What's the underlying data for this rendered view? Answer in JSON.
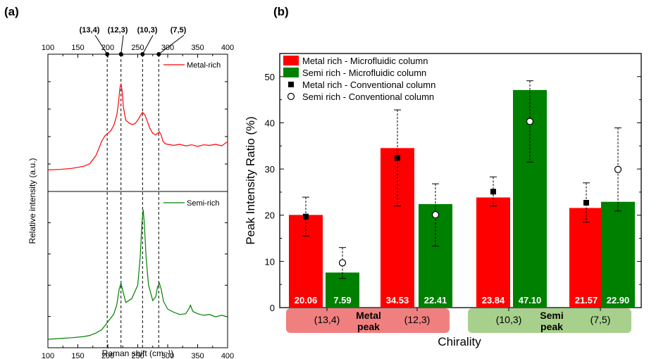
{
  "panel_a": {
    "label": "(a)",
    "chart_data": {
      "type": "line",
      "xlabel": "Raman shift (cm⁻¹)",
      "ylabel": "Relative intensity (a.u.)",
      "xlim": [
        100,
        400
      ],
      "xticks": [
        "100",
        "150",
        "200",
        "250",
        "300",
        "350",
        "400"
      ],
      "top_xticks": [
        "100",
        "150",
        "200",
        "250",
        "300",
        "350",
        "400"
      ],
      "markers": [
        {
          "label": "(13,4)",
          "x": 199
        },
        {
          "label": "(12,3)",
          "x": 222
        },
        {
          "label": "(10,3)",
          "x": 258
        },
        {
          "label": "(7,5)",
          "x": 285
        }
      ],
      "series": [
        {
          "name": "Metal-rich",
          "color": "#ff0000",
          "x": [
            100,
            120,
            140,
            160,
            170,
            180,
            185,
            190,
            195,
            200,
            205,
            210,
            215,
            218,
            220,
            222,
            224,
            226,
            230,
            235,
            240,
            245,
            250,
            255,
            258,
            262,
            266,
            270,
            275,
            280,
            283,
            286,
            289,
            292,
            296,
            300,
            310,
            320,
            330,
            340,
            350,
            360,
            370,
            380,
            390,
            400
          ],
          "y": [
            0.25,
            0.26,
            0.28,
            0.32,
            0.37,
            0.52,
            0.66,
            0.8,
            0.9,
            0.95,
            1.0,
            1.1,
            1.3,
            1.55,
            1.8,
            1.9,
            1.75,
            1.45,
            1.2,
            1.15,
            1.12,
            1.13,
            1.2,
            1.3,
            1.35,
            1.3,
            1.18,
            1.05,
            0.95,
            0.92,
            0.95,
            0.98,
            0.92,
            0.8,
            0.75,
            0.74,
            0.72,
            0.74,
            0.71,
            0.73,
            0.7,
            0.73,
            0.72,
            0.74,
            0.71,
            0.79
          ]
        },
        {
          "name": "Semi-rich",
          "color": "#008000",
          "x": [
            100,
            120,
            140,
            160,
            170,
            180,
            190,
            200,
            205,
            210,
            215,
            219,
            222,
            225,
            230,
            240,
            250,
            254,
            257,
            259,
            261,
            264,
            268,
            275,
            280,
            283,
            286,
            289,
            293,
            300,
            310,
            320,
            330,
            335,
            338,
            342,
            350,
            360,
            370,
            380,
            390,
            400
          ],
          "y": [
            0.0,
            0.02,
            0.04,
            0.07,
            0.1,
            0.16,
            0.25,
            0.45,
            0.55,
            0.65,
            0.9,
            1.3,
            1.45,
            1.25,
            0.95,
            1.05,
            1.4,
            2.1,
            3.0,
            3.35,
            3.0,
            2.1,
            1.4,
            1.0,
            1.1,
            1.35,
            1.45,
            1.3,
            0.98,
            0.78,
            0.7,
            0.64,
            0.66,
            0.78,
            0.88,
            0.72,
            0.66,
            0.62,
            0.64,
            0.58,
            0.62,
            0.58
          ]
        }
      ]
    }
  },
  "panel_b": {
    "label": "(b)",
    "chart_data": {
      "type": "bar",
      "ylabel": "Peak Intensity Ratio (%)",
      "xlabel": "Chirality",
      "ylim": [
        0,
        55
      ],
      "yticks": [
        "0",
        "10",
        "20",
        "30",
        "40",
        "50"
      ],
      "categories": [
        "(13,4)",
        "(12,3)",
        "(10,3)",
        "(7,5)"
      ],
      "groups": [
        {
          "label": "Metal\npeak",
          "line1": "Metal",
          "line2": "peak",
          "color": "#f08080",
          "categories": [
            "(13,4)",
            "(12,3)"
          ]
        },
        {
          "label": "Semi\npeak",
          "line1": "Semi",
          "line2": "peak",
          "color": "#a8d08d",
          "categories": [
            "(10,3)",
            "(7,5)"
          ]
        }
      ],
      "series": [
        {
          "name": "Metal rich - Microfluidic column",
          "kind": "bar",
          "color": "#ff0000",
          "values": [
            20.06,
            34.53,
            23.84,
            21.57
          ],
          "labels": [
            "20.06",
            "34.53",
            "23.84",
            "21.57"
          ]
        },
        {
          "name": "Semi rich - Microfluidic column",
          "kind": "bar",
          "color": "#008000",
          "values": [
            7.59,
            22.41,
            47.1,
            22.9
          ],
          "labels": [
            "7.59",
            "22.41",
            "47.10",
            "22.90"
          ]
        },
        {
          "name": "Metal rich - Conventional column",
          "kind": "marker-filled",
          "values": [
            19.7,
            32.4,
            25.1,
            22.7
          ],
          "err_low": [
            15.5,
            22.0,
            22.0,
            18.5
          ],
          "err_high": [
            23.9,
            42.8,
            28.3,
            27.0
          ]
        },
        {
          "name": "Semi rich - Conventional column",
          "kind": "marker-open",
          "values": [
            9.7,
            20.1,
            40.3,
            29.9
          ],
          "err_low": [
            6.3,
            13.3,
            31.5,
            20.9
          ],
          "err_high": [
            13.0,
            26.8,
            49.1,
            38.9
          ]
        }
      ],
      "legend_position": "top-left"
    }
  }
}
